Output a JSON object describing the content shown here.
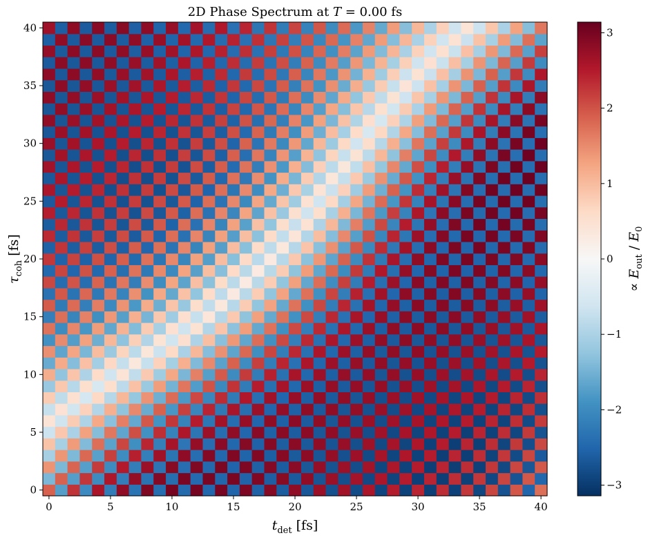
{
  "chart_data": {
    "type": "heatmap",
    "title": "2D Phase Spectrum at T = 0.00 fs",
    "title_parts": {
      "prefix": "2D Phase Spectrum at ",
      "var": "T",
      "suffix": " = 0.00 fs"
    },
    "xlabel": {
      "main": "t",
      "sub": "det",
      "unit": " [fs]"
    },
    "ylabel": {
      "main": "τ",
      "sub": "coh",
      "unit": " [fs]"
    },
    "colorbar_label": {
      "prefix": "∝ ",
      "main": "E",
      "sub": "out",
      "mid": " / ",
      "den": "E",
      "den_sub": "0"
    },
    "colormap": "RdBu_r",
    "colormap_colors": [
      "#053061",
      "#2166ac",
      "#4393c3",
      "#92c5de",
      "#d1e5f0",
      "#f7f7f7",
      "#fddbc7",
      "#f4a582",
      "#d6604d",
      "#b2182b",
      "#67001f"
    ],
    "x_range": [
      0,
      40
    ],
    "y_range": [
      0,
      40
    ],
    "x_step": 1,
    "y_step": 1,
    "value_range": [
      -3.14159,
      3.14159
    ],
    "x_ticks": [
      0,
      5,
      10,
      15,
      20,
      25,
      30,
      35,
      40
    ],
    "y_ticks": [
      0,
      5,
      10,
      15,
      20,
      25,
      30,
      35,
      40
    ],
    "colorbar_ticks": [
      {
        "value": -3,
        "label": "−3"
      },
      {
        "value": -2,
        "label": "−2"
      },
      {
        "value": -1,
        "label": "−1"
      },
      {
        "value": 0,
        "label": "0"
      },
      {
        "value": 1,
        "label": "1"
      },
      {
        "value": 2,
        "label": "2"
      },
      {
        "value": 3,
        "label": "3"
      }
    ],
    "grid": false,
    "pattern": "checkerboard phase alternating sign between neighbouring cells, with smooth diagonal drift of magnitude"
  }
}
